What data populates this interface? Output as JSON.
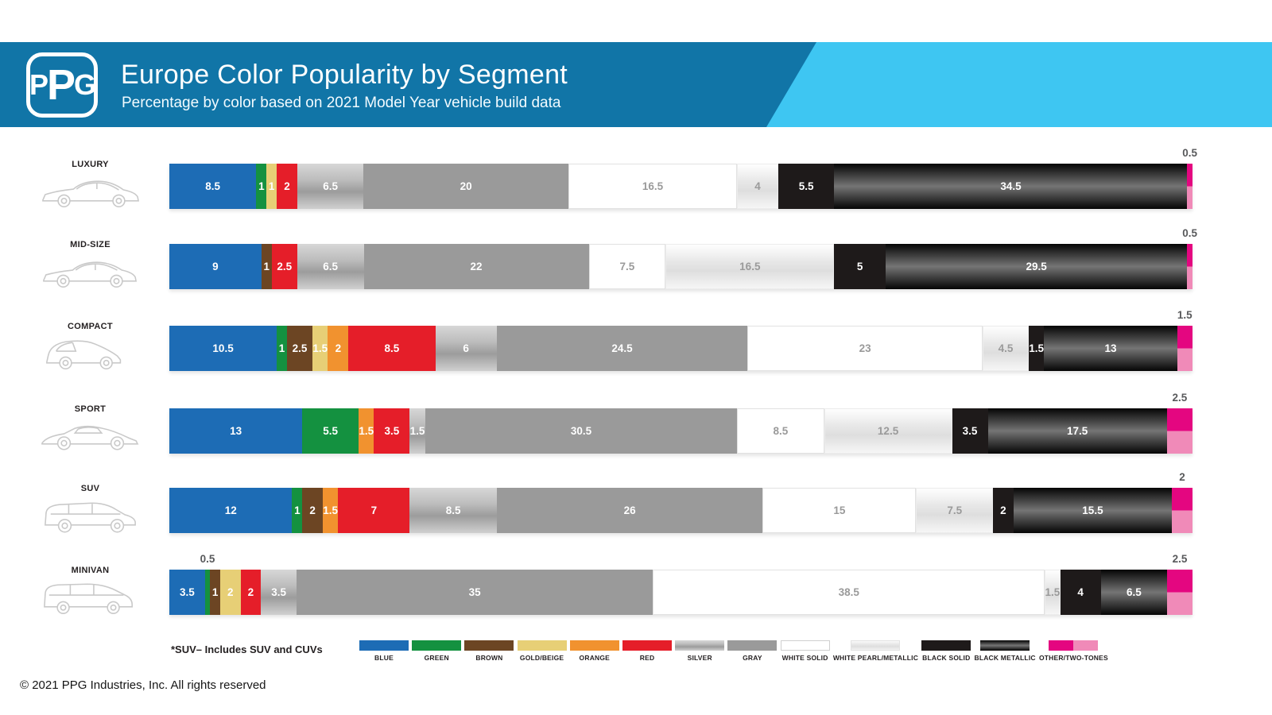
{
  "header": {
    "logo_text": "PPG",
    "title": "Europe Color Popularity by Segment",
    "subtitle": "Percentage by color based on 2021 Model Year vehicle build data",
    "dark_blue": "#1175a7",
    "light_blue": "#3ec6f2"
  },
  "palette": {
    "blue": "#1d6cb5",
    "green": "#149140",
    "brown": "#6c4523",
    "gold_beige": "#e7cf76",
    "orange": "#f1922f",
    "red": "#e51e29",
    "silver_stops": [
      "#d7d7d7",
      "#bdbdbd",
      "#9c9c9c",
      "#d0d0d0"
    ],
    "gray": "#9a9a9a",
    "white_solid": "#ffffff",
    "white_pearl_stops": [
      "#ffffff",
      "#e7e7e7",
      "#dedede",
      "#f7f7f7"
    ],
    "black_solid": "#1e1a1a",
    "black_metallic_stops": [
      "#050505",
      "#3a3a3a",
      "#757575",
      "#3a3a3a",
      "#050505"
    ],
    "other_magenta": "#e40680",
    "other_pink": "#f08ab8",
    "light_text": "#9a9a9a",
    "above_text": "#58595b"
  },
  "chart_data": {
    "type": "bar",
    "stacked": true,
    "orientation": "horizontal",
    "unit": "percent",
    "x_range": [
      0,
      100
    ],
    "categories": [
      "LUXURY",
      "MID-SIZE",
      "COMPACT",
      "SPORT",
      "SUV",
      "MINIVAN"
    ],
    "color_series": [
      "BLUE",
      "GREEN",
      "BROWN",
      "GOLD/BEIGE",
      "ORANGE",
      "RED",
      "SILVER",
      "GRAY",
      "WHITE SOLID",
      "WHITE PEARL/METALLIC",
      "BLACK SOLID",
      "BLACK METALLIC",
      "OTHER/TWO-TONES"
    ],
    "rows": [
      {
        "segment": "LUXURY",
        "icon": "luxury-sedan-icon",
        "segments": [
          {
            "key": "blue",
            "value": 8.5
          },
          {
            "key": "green",
            "value": 1
          },
          {
            "key": "gold_beige",
            "value": 1
          },
          {
            "key": "red",
            "value": 2
          },
          {
            "key": "silver",
            "value": 6.5
          },
          {
            "key": "gray",
            "value": 20
          },
          {
            "key": "white_solid",
            "value": 16.5
          },
          {
            "key": "white_pearl_metallic",
            "value": 4
          },
          {
            "key": "black_solid",
            "value": 5.5
          },
          {
            "key": "black_metallic",
            "value": 34.5
          },
          {
            "key": "other_two_tones",
            "value": 0.5,
            "label_above": true
          }
        ]
      },
      {
        "segment": "MID-SIZE",
        "icon": "midsize-sedan-icon",
        "segments": [
          {
            "key": "blue",
            "value": 9
          },
          {
            "key": "brown",
            "value": 1
          },
          {
            "key": "red",
            "value": 2.5
          },
          {
            "key": "silver",
            "value": 6.5
          },
          {
            "key": "gray",
            "value": 22
          },
          {
            "key": "white_solid",
            "value": 7.5
          },
          {
            "key": "white_pearl_metallic",
            "value": 16.5
          },
          {
            "key": "black_solid",
            "value": 5
          },
          {
            "key": "black_metallic",
            "value": 29.5
          },
          {
            "key": "other_two_tones",
            "value": 0.5,
            "label_above": true
          }
        ]
      },
      {
        "segment": "COMPACT",
        "icon": "compact-hatchback-icon",
        "segments": [
          {
            "key": "blue",
            "value": 10.5
          },
          {
            "key": "green",
            "value": 1
          },
          {
            "key": "brown",
            "value": 2.5
          },
          {
            "key": "gold_beige",
            "value": 1.5
          },
          {
            "key": "orange",
            "value": 2
          },
          {
            "key": "red",
            "value": 8.5
          },
          {
            "key": "silver",
            "value": 6
          },
          {
            "key": "gray",
            "value": 24.5
          },
          {
            "key": "white_solid",
            "value": 23
          },
          {
            "key": "white_pearl_metallic",
            "value": 4.5
          },
          {
            "key": "black_solid",
            "value": 1.5
          },
          {
            "key": "black_metallic",
            "value": 13
          },
          {
            "key": "other_two_tones",
            "value": 1.5,
            "label_above": true
          }
        ]
      },
      {
        "segment": "SPORT",
        "icon": "sport-car-icon",
        "segments": [
          {
            "key": "blue",
            "value": 13
          },
          {
            "key": "green",
            "value": 5.5
          },
          {
            "key": "orange",
            "value": 1.5
          },
          {
            "key": "red",
            "value": 3.5
          },
          {
            "key": "silver",
            "value": 1.5
          },
          {
            "key": "gray",
            "value": 30.5
          },
          {
            "key": "white_solid",
            "value": 8.5
          },
          {
            "key": "white_pearl_metallic",
            "value": 12.5
          },
          {
            "key": "black_solid",
            "value": 3.5
          },
          {
            "key": "black_metallic",
            "value": 17.5
          },
          {
            "key": "other_two_tones",
            "value": 2.5,
            "label_above": true
          }
        ]
      },
      {
        "segment": "SUV",
        "icon": "suv-icon",
        "segments": [
          {
            "key": "blue",
            "value": 12
          },
          {
            "key": "green",
            "value": 1
          },
          {
            "key": "brown",
            "value": 2
          },
          {
            "key": "orange",
            "value": 1.5
          },
          {
            "key": "red",
            "value": 7
          },
          {
            "key": "silver",
            "value": 8.5
          },
          {
            "key": "gray",
            "value": 26
          },
          {
            "key": "white_solid",
            "value": 15
          },
          {
            "key": "white_pearl_metallic",
            "value": 7.5
          },
          {
            "key": "black_solid",
            "value": 2
          },
          {
            "key": "black_metallic",
            "value": 15.5
          },
          {
            "key": "other_two_tones",
            "value": 2,
            "label_above": true
          }
        ]
      },
      {
        "segment": "MINIVAN",
        "icon": "minivan-icon",
        "segments": [
          {
            "key": "blue",
            "value": 3.5
          },
          {
            "key": "green",
            "value": 0.5,
            "label_above": true
          },
          {
            "key": "brown",
            "value": 1
          },
          {
            "key": "gold_beige",
            "value": 2
          },
          {
            "key": "red",
            "value": 2
          },
          {
            "key": "silver",
            "value": 3.5
          },
          {
            "key": "gray",
            "value": 35
          },
          {
            "key": "white_solid",
            "value": 38.5
          },
          {
            "key": "white_pearl_metallic",
            "value": 1.5
          },
          {
            "key": "black_solid",
            "value": 4
          },
          {
            "key": "black_metallic",
            "value": 6.5
          },
          {
            "key": "other_two_tones",
            "value": 2.5,
            "label_above": true
          }
        ]
      }
    ]
  },
  "legend": {
    "note": "*SUV– Includes SUV and CUVs",
    "items": [
      {
        "key": "blue",
        "label": "BLUE"
      },
      {
        "key": "green",
        "label": "GREEN"
      },
      {
        "key": "brown",
        "label": "BROWN"
      },
      {
        "key": "gold_beige",
        "label": "GOLD/BEIGE"
      },
      {
        "key": "orange",
        "label": "ORANGE"
      },
      {
        "key": "red",
        "label": "RED"
      },
      {
        "key": "silver",
        "label": "SILVER"
      },
      {
        "key": "gray",
        "label": "GRAY"
      },
      {
        "key": "white_solid",
        "label": "WHITE SOLID"
      },
      {
        "key": "white_pearl_metallic",
        "label": "WHITE PEARL/METALLIC"
      },
      {
        "key": "black_solid",
        "label": "BLACK SOLID"
      },
      {
        "key": "black_metallic",
        "label": "BLACK METALLIC"
      },
      {
        "key": "other_two_tones",
        "label": "OTHER/TWO-TONES"
      }
    ]
  },
  "footer": {
    "copyright": "© 2021 PPG Industries, Inc. All rights reserved"
  }
}
